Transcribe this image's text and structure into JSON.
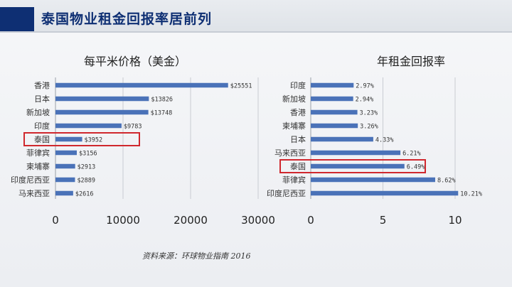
{
  "header": {
    "title": "泰国物业租金回报率居前列"
  },
  "source": "资料来源：环球物业指南 2016",
  "colors": {
    "bar": "#4a72b8",
    "highlight": "#d0282e",
    "title": "#0e2f73"
  },
  "chart_data": [
    {
      "type": "bar",
      "orientation": "horizontal",
      "title": "每平米价格（美金）",
      "categories": [
        "香港",
        "日本",
        "新加坡",
        "印度",
        "泰国",
        "菲律宾",
        "柬埔寨",
        "印度尼西亚",
        "马来西亚"
      ],
      "values": [
        25551,
        13826,
        13748,
        9783,
        3952,
        3156,
        2913,
        2889,
        2616
      ],
      "data_labels": [
        "$25551",
        "$13826",
        "$13748",
        "$9783",
        "$3952",
        "$3156",
        "$2913",
        "$2889",
        "$2616"
      ],
      "xlim": [
        0,
        30000
      ],
      "xticks": [
        0,
        10000,
        20000,
        30000
      ],
      "grid": true,
      "highlight": "泰国"
    },
    {
      "type": "bar",
      "orientation": "horizontal",
      "title": "年租金回报率",
      "categories": [
        "印度",
        "新加坡",
        "香港",
        "柬埔寨",
        "日本",
        "马来西亚",
        "泰国",
        "菲律宾",
        "印度尼西亚"
      ],
      "values": [
        2.97,
        2.94,
        3.23,
        3.26,
        4.33,
        6.21,
        6.49,
        8.62,
        10.21
      ],
      "data_labels": [
        "2.97%",
        "2.94%",
        "3.23%",
        "3.26%",
        "4.33%",
        "6.21%",
        "6.49%",
        "8.62%",
        "10.21%"
      ],
      "xlim": [
        0,
        10
      ],
      "xticks": [
        0,
        5,
        10
      ],
      "grid": true,
      "highlight": "泰国"
    }
  ]
}
